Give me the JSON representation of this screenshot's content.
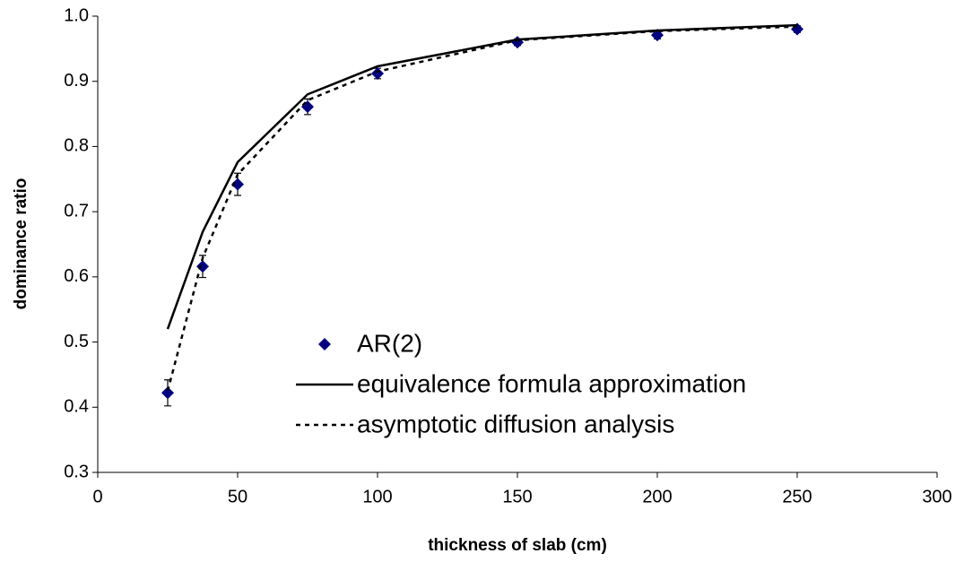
{
  "chart_data": {
    "type": "line",
    "x_label": "thickness of slab (cm)",
    "y_label": "dominance ratio",
    "x": [
      25,
      37.5,
      50,
      75,
      100,
      150,
      200,
      250
    ],
    "series": [
      {
        "name": "AR(2)",
        "color": "#000080",
        "mode": "markers",
        "values": [
          0.422,
          0.616,
          0.742,
          0.861,
          0.912,
          0.96,
          0.971,
          0.98
        ],
        "errors": [
          0.02,
          0.017,
          0.017,
          0.012,
          0.008,
          0.005,
          0.006,
          0.005
        ]
      },
      {
        "name": "equivalence formula approximation",
        "color": "#000000",
        "mode": "line",
        "dash": false,
        "values": [
          0.52,
          0.669,
          0.776,
          0.88,
          0.923,
          0.964,
          0.978,
          0.986
        ]
      },
      {
        "name": "asymptotic diffusion analysis",
        "color": "#000000",
        "mode": "line",
        "dash": true,
        "values": [
          0.425,
          0.629,
          0.757,
          0.871,
          0.915,
          0.963,
          0.977,
          0.984
        ]
      }
    ],
    "xlim": [
      0,
      300
    ],
    "xticks": [
      0,
      50,
      100,
      150,
      200,
      250,
      300
    ],
    "ylim": [
      0.3,
      1.0
    ],
    "yticks": [
      0.3,
      0.4,
      0.5,
      0.6,
      0.7,
      0.8,
      0.9,
      {
        "value": 1.0,
        "label": "1.0"
      }
    ],
    "grid": false,
    "legend": "bottom-center"
  }
}
